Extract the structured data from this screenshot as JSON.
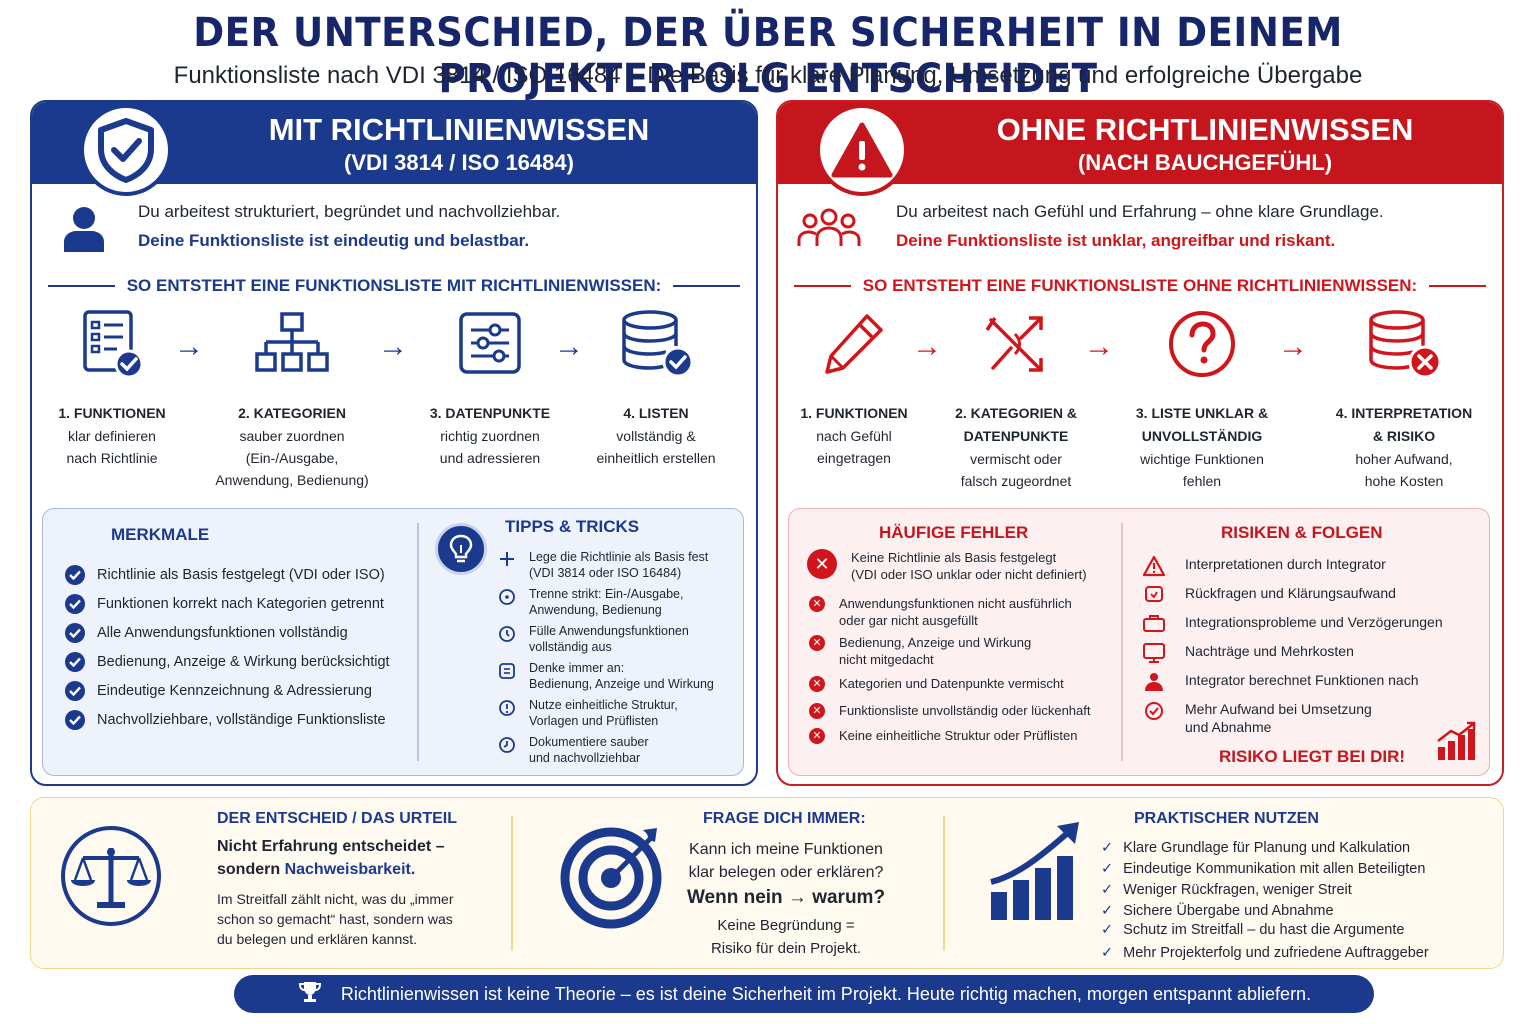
{
  "header": {
    "title": "DER UNTERSCHIED, DER ÜBER SICHERHEIT IN DEINEM PROJEKTERFOLG ENTSCHEIDET",
    "subtitle": "Funktionsliste nach VDI 3814 / ISO 16484 – Die Basis für klare Planung, Umsetzung und erfolgreiche Übergabe"
  },
  "colors": {
    "blue": "#1b3a8e",
    "red": "#c4161c",
    "gold": "#f0d98a"
  },
  "left": {
    "title": "MIT RICHTLINIENWISSEN",
    "subtitle": "(VDI 3814 / ISO 16484)",
    "intro_1": "Du arbeitest strukturiert, begründet und nachvollziehbar.",
    "intro_2": "Deine Funktionsliste ist eindeutig und belastbar.",
    "section": "SO ENTSTEHT EINE FUNKTIONSLISTE MIT RICHTLINIENWISSEN:",
    "steps": [
      {
        "title": "1. FUNKTIONEN",
        "desc": [
          "klar definieren",
          "nach Richtlinie"
        ],
        "icon": "checklist-icon"
      },
      {
        "title": "2. KATEGORIEN",
        "desc": [
          "sauber zuordnen",
          "(Ein-/Ausgabe,",
          "Anwendung, Bedienung)"
        ],
        "icon": "hierarchy-icon"
      },
      {
        "title": "3. DATENPUNKTE",
        "desc": [
          "richtig zuordnen",
          "und adressieren"
        ],
        "icon": "sliders-icon"
      },
      {
        "title": "4. LISTEN",
        "desc": [
          "vollständig &",
          "einheitlich erstellen"
        ],
        "icon": "database-check-icon"
      }
    ],
    "features_title": "MERKMALE",
    "features": [
      "Richtlinie als Basis festgelegt (VDI oder ISO)",
      "Funktionen korrekt nach Kategorien getrennt",
      "Alle Anwendungsfunktionen vollständig",
      "Bedienung, Anzeige & Wirkung berücksichtigt",
      "Eindeutige Kennzeichnung & Adressierung",
      "Nachvollziehbare, vollständige Funktionsliste"
    ],
    "tips_title": "TIPPS & TRICKS",
    "tips": [
      [
        "Lege die Richtlinie als Basis fest",
        "(VDI 3814 oder ISO 16484)"
      ],
      [
        "Trenne strikt: Ein-/Ausgabe,",
        "Anwendung, Bedienung"
      ],
      [
        "Fülle Anwendungsfunktionen",
        "vollständig aus"
      ],
      [
        "Denke immer an:",
        "Bedienung, Anzeige und Wirkung"
      ],
      [
        "Nutze einheitliche Struktur,",
        "Vorlagen und Prüflisten"
      ],
      [
        "Dokumentiere sauber",
        "und nachvollziehbar"
      ]
    ]
  },
  "right": {
    "title": "OHNE RICHTLINIENWISSEN",
    "subtitle": "(NACH BAUCHGEFÜHL)",
    "intro_1": "Du arbeitest nach Gefühl und Erfahrung – ohne klare Grundlage.",
    "intro_2": "Deine Funktionsliste ist unklar, angreifbar und riskant.",
    "section": "SO ENTSTEHT EINE FUNKTIONSLISTE OHNE RICHTLINIENWISSEN:",
    "steps": [
      {
        "title": [
          "1. FUNKTIONEN"
        ],
        "desc": [
          "nach Gefühl",
          "eingetragen"
        ],
        "icon": "pencil-icon"
      },
      {
        "title": [
          "2. KATEGORIEN &",
          "DATENPUNKTE"
        ],
        "desc": [
          "vermischt oder",
          "falsch zugeordnet"
        ],
        "icon": "crossed-arrows-icon"
      },
      {
        "title": [
          "3. LISTE UNKLAR &",
          "UNVOLLSTÄNDIG"
        ],
        "desc": [
          "wichtige Funktionen",
          "fehlen"
        ],
        "icon": "question-icon"
      },
      {
        "title": [
          "4. INTERPRETATION",
          "& RISIKO"
        ],
        "desc": [
          "hoher Aufwand,",
          "hohe Kosten"
        ],
        "icon": "database-error-icon"
      }
    ],
    "errors_title": "HÄUFIGE FEHLER",
    "errors": [
      [
        "Keine Richtlinie als Basis festgelegt",
        "(VDI oder ISO unklar oder nicht definiert)"
      ],
      [
        "Anwendungsfunktionen nicht ausführlich",
        "oder gar nicht ausgefüllt"
      ],
      [
        "Bedienung, Anzeige und Wirkung",
        "nicht mitgedacht"
      ],
      [
        "Kategorien und Datenpunkte vermischt"
      ],
      [
        "Funktionsliste unvollständig oder lückenhaft"
      ],
      [
        "Keine einheitliche Struktur oder Prüflisten"
      ]
    ],
    "risks_title": "RISIKEN & FOLGEN",
    "risks": [
      [
        "Interpretationen durch Integrator"
      ],
      [
        "Rückfragen und Klärungsaufwand"
      ],
      [
        "Integrationsprobleme und Verzögerungen"
      ],
      [
        "Nachträge und Mehrkosten"
      ],
      [
        "Integrator berechnet Funktionen nach"
      ],
      [
        "Mehr Aufwand bei Umsetzung",
        "und Abnahme"
      ]
    ],
    "risk_footer": "RISIKO LIEGT BEI DIR!"
  },
  "bottom": {
    "verdict_title": "DER ENTSCHEID / DAS URTEIL",
    "verdict_1a": "Nicht Erfahrung entscheidet –",
    "verdict_1b": "sondern ",
    "verdict_1c": "Nachweisbarkeit.",
    "verdict_text": [
      "Im Streitfall zählt nicht, was du „immer",
      "schon so gemacht“ hast, sondern was",
      "du belegen und erklären kannst."
    ],
    "question_title": "FRAGE DICH IMMER:",
    "question_1": "Kann ich meine Funktionen",
    "question_2": "klar belegen oder erklären?",
    "question_3": "Wenn nein → warum?",
    "question_4": "Keine Begründung =",
    "question_5": "Risiko für dein Projekt.",
    "benefit_title": "PRAKTISCHER NUTZEN",
    "benefits": [
      "Klare Grundlage für Planung und Kalkulation",
      "Eindeutige Kommunikation mit allen Beteiligten",
      "Weniger Rückfragen, weniger Streit",
      "Sichere Übergabe und Abnahme",
      "Schutz im Streitfall – du hast die Argumente",
      "Mehr Projekterfolg und zufriedene Auftraggeber"
    ]
  },
  "banner": "Richtlinienwissen ist keine Theorie – es ist deine Sicherheit im Projekt. Heute richtig machen, morgen entspannt abliefern."
}
